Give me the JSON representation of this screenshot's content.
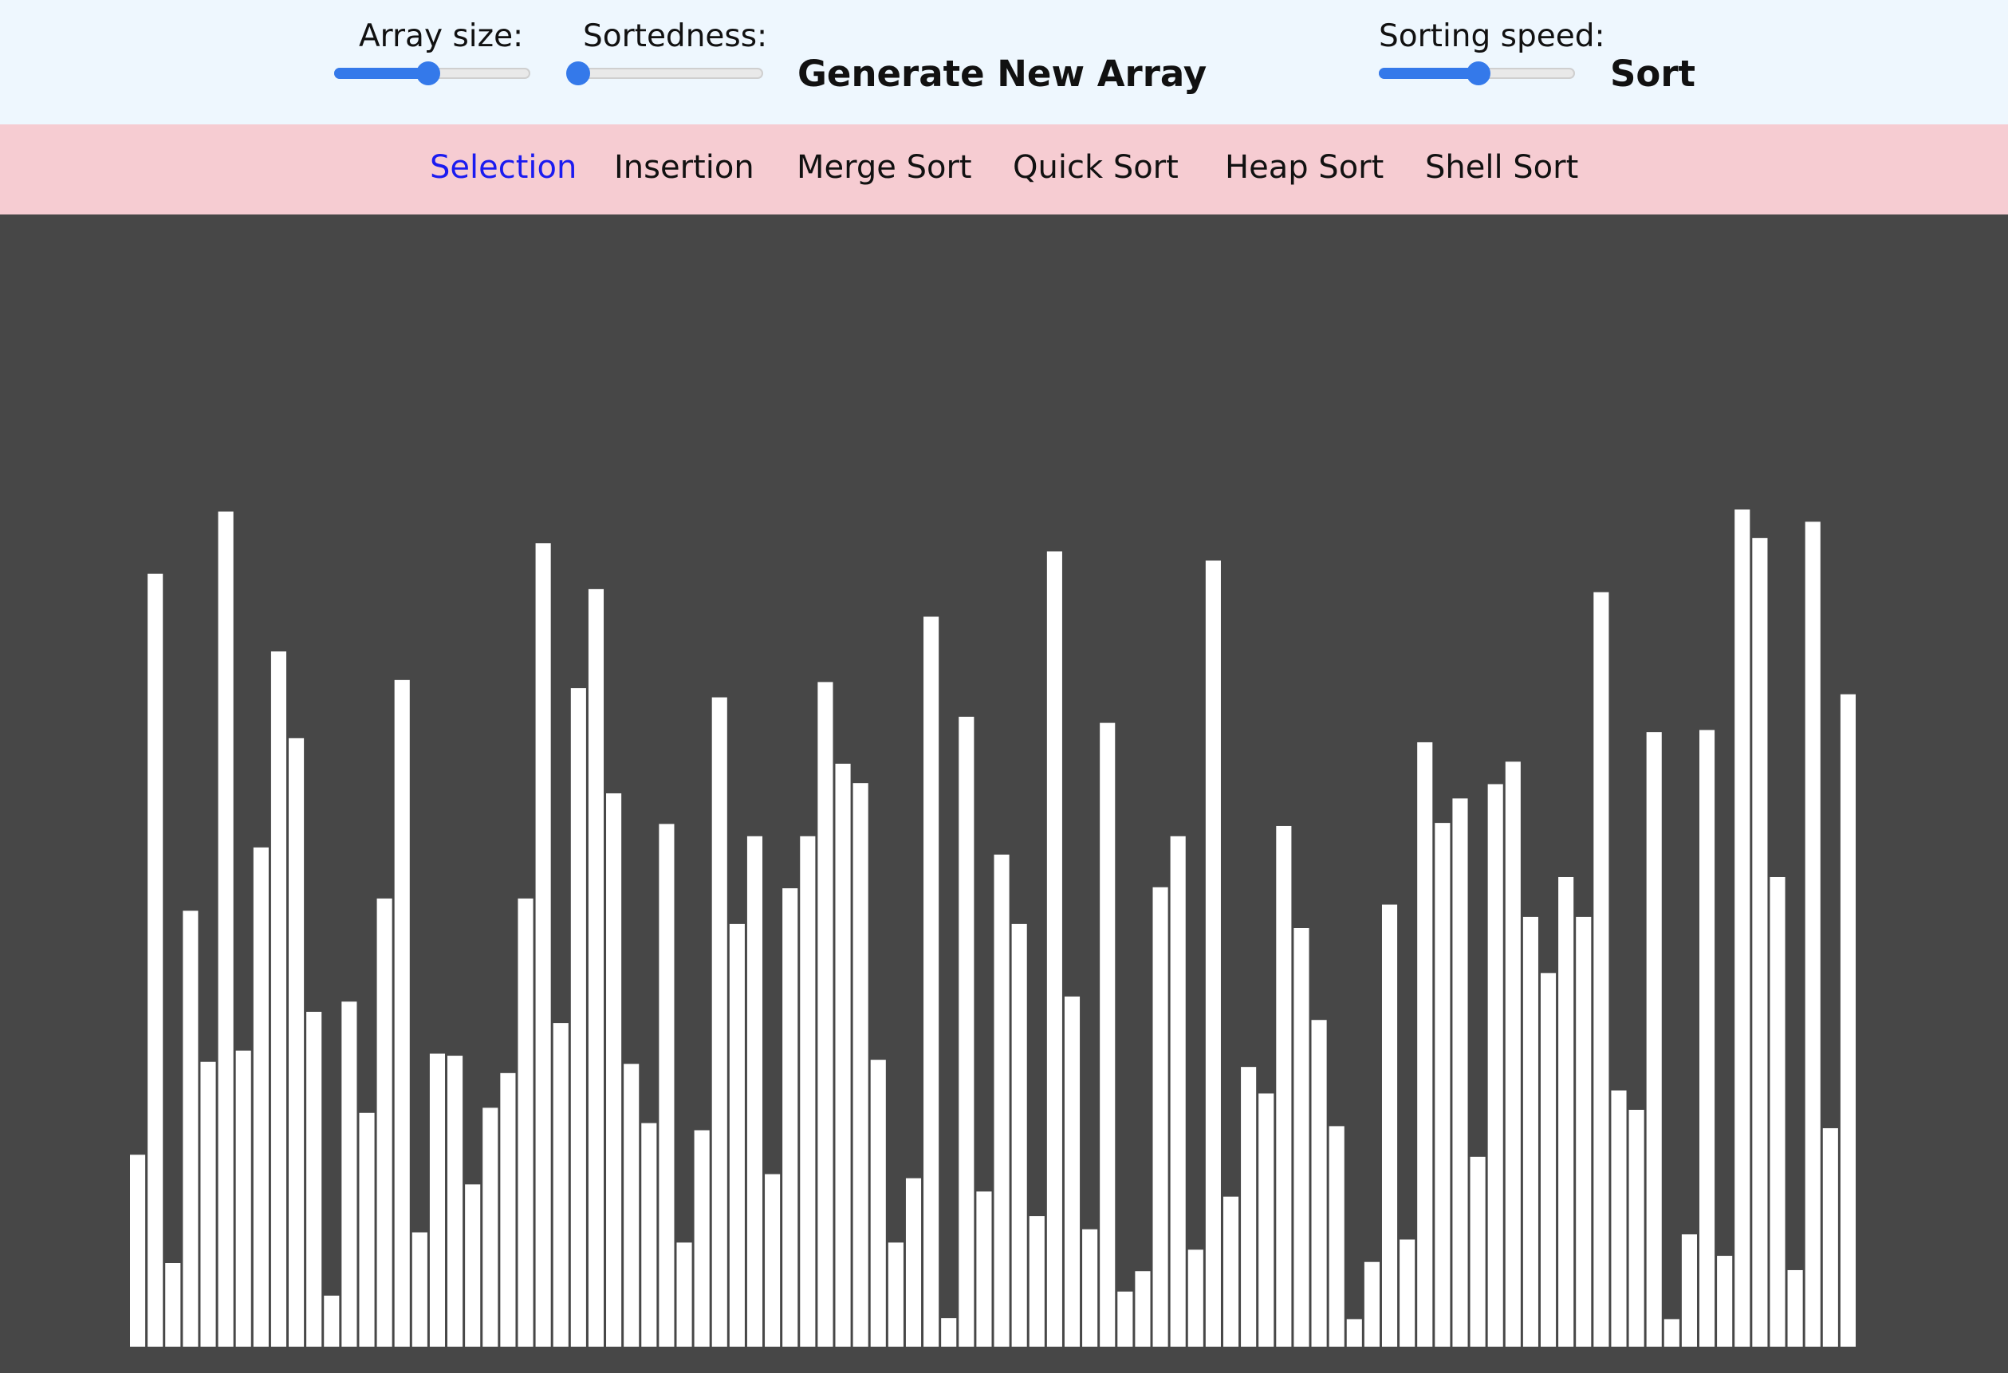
{
  "controls": {
    "array_size": {
      "label": "Array size:",
      "value_fraction": 0.48
    },
    "sortedness": {
      "label": "Sortedness:",
      "value_fraction": 0.05
    },
    "generate_label": "Generate New Array",
    "sorting_speed": {
      "label": "Sorting speed:",
      "value_fraction": 0.51
    },
    "sort_label": "Sort"
  },
  "algorithms": {
    "tabs": [
      {
        "label": "Selection",
        "active": true
      },
      {
        "label": "Insertion",
        "active": false
      },
      {
        "label": "Merge Sort",
        "active": false
      },
      {
        "label": "Quick Sort",
        "active": false
      },
      {
        "label": "Heap Sort",
        "active": false
      },
      {
        "label": "Shell Sort",
        "active": false
      }
    ]
  },
  "colors": {
    "accent": "#3479ea",
    "active_tab": "#1b1bf0",
    "bar": "#ffffff",
    "background": "#474747",
    "top_bar": "#eef7fe",
    "algo_bar": "#f6ccd2"
  },
  "array": {
    "values": [
      188,
      757,
      82,
      427,
      279,
      818,
      290,
      489,
      681,
      596,
      328,
      50,
      338,
      229,
      439,
      653,
      112,
      287,
      285,
      159,
      234,
      268,
      439,
      787,
      317,
      645,
      742,
      542,
      277,
      219,
      512,
      102,
      212,
      636,
      414,
      500,
      169,
      449,
      500,
      651,
      571,
      552,
      281,
      102,
      165,
      715,
      28,
      617,
      152,
      482,
      414,
      128,
      779,
      343,
      115,
      611,
      54,
      74,
      450,
      500,
      95,
      770,
      147,
      274,
      248,
      510,
      410,
      320,
      216,
      27,
      83,
      433,
      105,
      592,
      513,
      537,
      186,
      551,
      573,
      421,
      366,
      460,
      421,
      739,
      251,
      232,
      602,
      27,
      110,
      604,
      89,
      820,
      792,
      460,
      75,
      808,
      214,
      639
    ],
    "max_value": 820
  }
}
